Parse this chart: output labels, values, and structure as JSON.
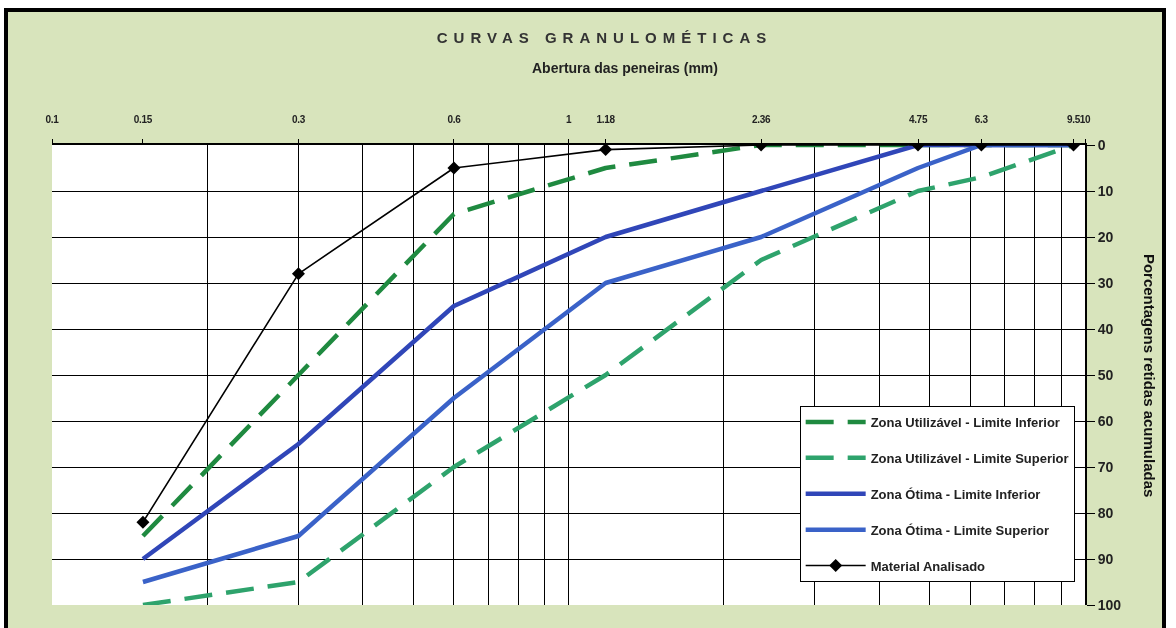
{
  "chart_data": {
    "type": "line",
    "title": "CURVAS GRANULOMÉTICAS",
    "xlabel": "Abertura das peneiras (mm)",
    "ylabel": "Porcentagens retidas acumuladas",
    "x": [
      0.15,
      0.3,
      0.6,
      1.18,
      2.36,
      4.75,
      6.3,
      9.5
    ],
    "log": "x",
    "xlim": [
      0.1,
      10
    ],
    "xticks": [
      0.1,
      0.15,
      0.3,
      0.6,
      1,
      1.18,
      2.36,
      4.75,
      6.3,
      9.5,
      10
    ],
    "ylim": [
      100,
      0
    ],
    "yticks": [
      0,
      10,
      20,
      30,
      40,
      50,
      60,
      70,
      80,
      90,
      100
    ],
    "grid": true,
    "legend": "bottom right",
    "series": [
      {
        "name": "Zona Utilizável - Limite Inferior",
        "color": "#1f8a40",
        "line_style": "dashed",
        "values": [
          85,
          50,
          15,
          5,
          0,
          0,
          0,
          0
        ]
      },
      {
        "name": "Zona Utilizável - Limite Superior",
        "color": "#2ea36c",
        "line_style": "dashed",
        "values": [
          100,
          95,
          70,
          50,
          25,
          10,
          7,
          0
        ]
      },
      {
        "name": "Zona Ótima - Limite Inferior",
        "color": "#3046b8",
        "line_style": "solid",
        "values": [
          90,
          65,
          35,
          20,
          10,
          0,
          0,
          0
        ]
      },
      {
        "name": "Zona Ótima - Limite Superior",
        "color": "#3a62c8",
        "line_style": "solid",
        "values": [
          95,
          85,
          55,
          30,
          20,
          5,
          0,
          0
        ]
      },
      {
        "name": "Material Analisado",
        "color": "#000000",
        "line_style": "solid",
        "marker": "diamond",
        "values": [
          82,
          28,
          5,
          1,
          0,
          0,
          0,
          0
        ]
      }
    ]
  }
}
